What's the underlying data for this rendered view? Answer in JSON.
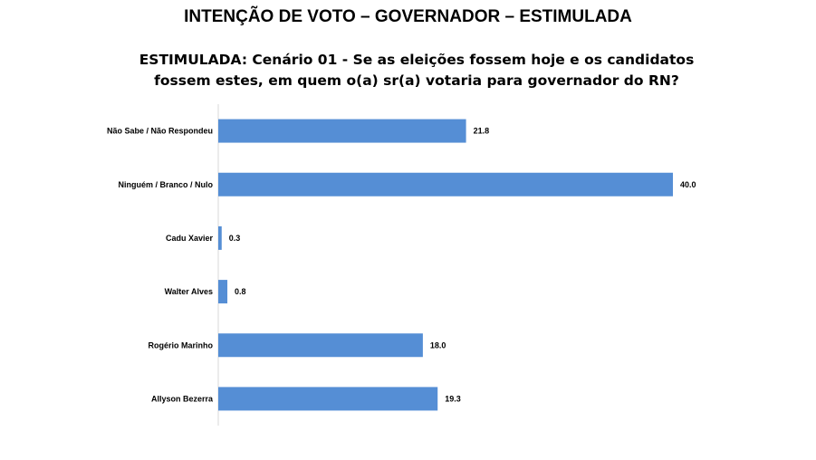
{
  "page_title": "INTENÇÃO DE VOTO – GOVERNADOR – ESTIMULADA",
  "subtitle_line1": "ESTIMULADA: Cenário 01 - Se as eleições fossem hoje e os candidatos",
  "subtitle_line2": "fossem estes, em quem o(a) sr(a) votaria para governador do RN?",
  "chart_data": {
    "type": "bar",
    "orientation": "horizontal",
    "categories": [
      "Não Sabe / Não Respondeu",
      "Ninguém / Branco / Nulo",
      "Cadu Xavier",
      "Walter Alves",
      "Rogério Marinho",
      "Allyson Bezerra"
    ],
    "values": [
      21.8,
      40.0,
      0.3,
      0.8,
      18.0,
      19.3
    ],
    "value_labels": [
      "21.8",
      "40.0",
      "0.3",
      "0.8",
      "18.0",
      "19.3"
    ],
    "xlim": [
      0,
      40
    ],
    "grid": false,
    "bar_color": "#558ed5"
  }
}
